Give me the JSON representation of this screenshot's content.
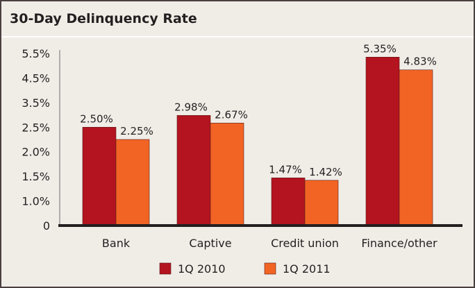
{
  "chart_data": {
    "type": "bar",
    "title": "30-Day Delinquency Rate",
    "xlabel": "",
    "ylabel": "",
    "categories": [
      "Bank",
      "Captive",
      "Credit union",
      "Finance/other"
    ],
    "series": [
      {
        "name": "1Q 2010",
        "color": "#b3141f",
        "values": [
          2.5,
          2.98,
          1.47,
          5.35
        ],
        "labels": [
          "2.50%",
          "2.98%",
          "1.47%",
          "5.35%"
        ]
      },
      {
        "name": "1Q 2011",
        "color": "#f26424",
        "values": [
          2.25,
          2.67,
          1.42,
          4.83
        ],
        "labels": [
          "2.25%",
          "2.67%",
          "1.42%",
          "4.83%"
        ]
      }
    ],
    "yticks": [
      0,
      1.0,
      1.5,
      2.0,
      2.5,
      3.5,
      4.5,
      5.5
    ],
    "ytick_labels": [
      "0",
      "1.0%",
      "1.5%",
      "2.0%",
      "2.5%",
      "3.5%",
      "4.5%",
      "5.5%"
    ],
    "ylim": [
      0,
      5.5
    ],
    "grid": false,
    "legend": "bottom-center"
  }
}
